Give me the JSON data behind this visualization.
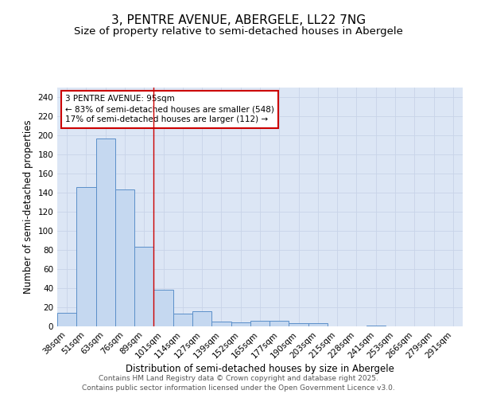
{
  "title_line1": "3, PENTRE AVENUE, ABERGELE, LL22 7NG",
  "title_line2": "Size of property relative to semi-detached houses in Abergele",
  "xlabel": "Distribution of semi-detached houses by size in Abergele",
  "ylabel": "Number of semi-detached properties",
  "categories": [
    "38sqm",
    "51sqm",
    "63sqm",
    "76sqm",
    "89sqm",
    "101sqm",
    "114sqm",
    "127sqm",
    "139sqm",
    "152sqm",
    "165sqm",
    "177sqm",
    "190sqm",
    "203sqm",
    "215sqm",
    "228sqm",
    "241sqm",
    "253sqm",
    "266sqm",
    "279sqm",
    "291sqm"
  ],
  "values": [
    14,
    146,
    197,
    143,
    83,
    38,
    13,
    16,
    5,
    4,
    6,
    6,
    3,
    3,
    0,
    0,
    1,
    0,
    0,
    0,
    0
  ],
  "bar_color": "#c5d8f0",
  "bar_edge_color": "#5b8fc9",
  "annotation_text": "3 PENTRE AVENUE: 95sqm\n← 83% of semi-detached houses are smaller (548)\n17% of semi-detached houses are larger (112) →",
  "annotation_box_color": "#ffffff",
  "annotation_box_edge": "#cc0000",
  "vline_color": "#cc0000",
  "vline_x": 4.5,
  "ylim": [
    0,
    250
  ],
  "yticks": [
    0,
    20,
    40,
    60,
    80,
    100,
    120,
    140,
    160,
    180,
    200,
    220,
    240
  ],
  "grid_color": "#c8d4e8",
  "background_color": "#dce6f5",
  "footer_line1": "Contains HM Land Registry data © Crown copyright and database right 2025.",
  "footer_line2": "Contains public sector information licensed under the Open Government Licence v3.0.",
  "title_fontsize": 11,
  "subtitle_fontsize": 9.5,
  "axis_label_fontsize": 8.5,
  "tick_fontsize": 7.5,
  "annotation_fontsize": 7.5,
  "footer_fontsize": 6.5
}
